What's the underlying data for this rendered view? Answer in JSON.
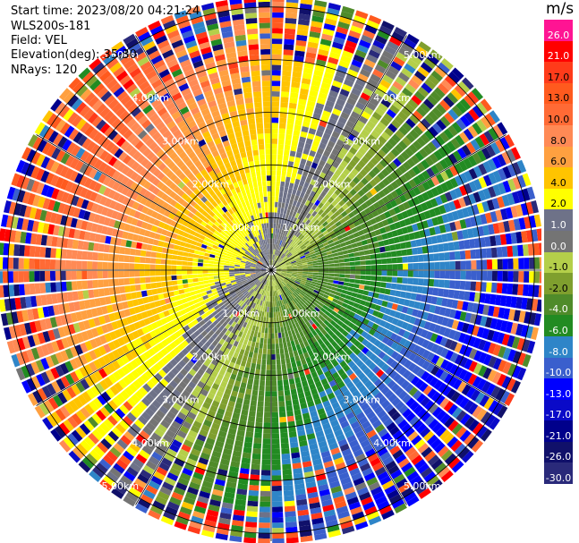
{
  "header": {
    "start_time": "Start time: 2023/08/20 04:21:24",
    "station": "WLS200s-181",
    "field": "Field: VEL",
    "elevation": "Elevation(deg): 35.30",
    "nrays": "NRays: 120"
  },
  "colorbar": {
    "unit": "m/s",
    "ticks": [
      "26.0",
      "21.0",
      "17.0",
      "13.0",
      "10.0",
      "8.0",
      "6.0",
      "4.0",
      "2.0",
      "1.0",
      "0.0",
      "-1.0",
      "-2.0",
      "-4.0",
      "-6.0",
      "-8.0",
      "-10.0",
      "-13.0",
      "-17.0",
      "-21.0",
      "-26.0",
      "-30.0"
    ],
    "colors": [
      "#ff1493",
      "#ff0000",
      "#ff3b1a",
      "#ff5a1e",
      "#ff6a35",
      "#ff8a55",
      "#ffa040",
      "#ffc400",
      "#ffff00",
      "#6e7288",
      "#747474",
      "#b4cf4a",
      "#7f9f2e",
      "#4f8b2a",
      "#228b22",
      "#2e85c8",
      "#3a5fcd",
      "#0000ff",
      "#0a0ac8",
      "#00008b",
      "#10106a",
      "#2a2a7a"
    ]
  },
  "chart_data": {
    "type": "heatmap",
    "title": "",
    "field": "VEL",
    "unit": "m/s",
    "nrays": 120,
    "range_rings_km": [
      1.0,
      2.0,
      3.0,
      4.0,
      5.0
    ],
    "range_ring_labels": [
      "1.00km",
      "2.00km",
      "3.00km",
      "4.00km",
      "5.00km"
    ],
    "max_range_km": 5.15,
    "color_scale_min": -30.0,
    "color_scale_max": 26.0,
    "pattern": "radial-velocity PPI: near-zero (gray/green) core with light winds, positive (orange/red, receding) to the north-west, negative (blue, approaching) to the south-east, noisy speckle beyond ~3.5 km"
  }
}
